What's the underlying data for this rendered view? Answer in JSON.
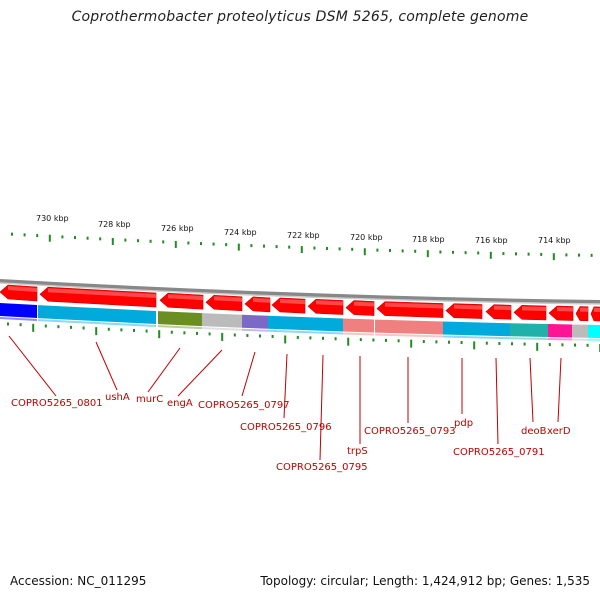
{
  "title": "Coprothermobacter proteolyticus DSM 5265, complete genome",
  "footer": {
    "accession": "Accession: NC_011295",
    "summary": "Topology: circular; Length: 1,424,912 bp; Genes: 1,535"
  },
  "colors": {
    "forward_gene": "#ff0000",
    "cog_blue": "#0000ff",
    "cog_cyan": "#00aadd",
    "cog_olive": "#6b8e23",
    "cog_gray": "#bbbbbb",
    "cog_purple": "#7b68c8",
    "cog_salmon": "#f08080",
    "cog_teal": "#20b2aa",
    "cog_magenta": "#ff1493",
    "cog_aqua": "#00ffff",
    "leader": "#c00000",
    "tick": "#228b22",
    "backbone": "#888888"
  },
  "scale": {
    "labels": [
      "730 kbp",
      "728 kbp",
      "726 kbp",
      "724 kbp",
      "722 kbp",
      "720 kbp",
      "718 kbp",
      "716 kbp",
      "714 kbp"
    ]
  },
  "genes": {
    "labels": [
      "COPRO5265_0801",
      "ushA",
      "murC",
      "engA",
      "COPRO5265_0797",
      "COPRO5265_0796",
      "COPRO5265_0795",
      "trpS",
      "COPRO5265_0793",
      "pdp",
      "COPRO5265_0791",
      "deoB",
      "xerD"
    ]
  }
}
